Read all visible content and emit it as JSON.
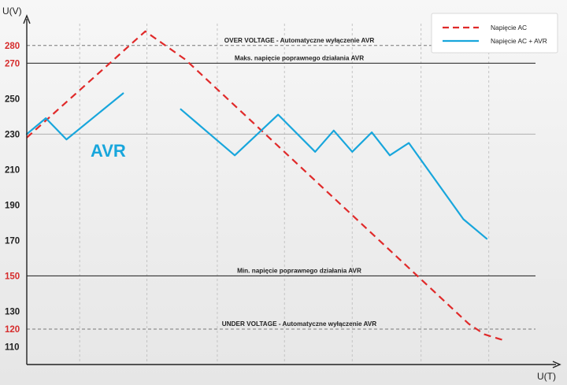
{
  "chart_data": {
    "type": "line",
    "ylabel": "U(V)",
    "xlabel": "U(T)",
    "ylim": [
      100,
      295
    ],
    "xlim": [
      0,
      100
    ],
    "yticks": [
      {
        "value": 280,
        "label": "280",
        "color": "#d62c2c"
      },
      {
        "value": 270,
        "label": "270",
        "color": "#d62c2c"
      },
      {
        "value": 250,
        "label": "250",
        "color": "#222222"
      },
      {
        "value": 230,
        "label": "230",
        "color": "#222222"
      },
      {
        "value": 210,
        "label": "210",
        "color": "#222222"
      },
      {
        "value": 190,
        "label": "190",
        "color": "#222222"
      },
      {
        "value": 170,
        "label": "170",
        "color": "#222222"
      },
      {
        "value": 150,
        "label": "150",
        "color": "#d62c2c"
      },
      {
        "value": 130,
        "label": "130",
        "color": "#222222"
      },
      {
        "value": 120,
        "label": "120",
        "color": "#d62c2c"
      },
      {
        "value": 110,
        "label": "110",
        "color": "#222222"
      }
    ],
    "vgrid_x": [
      10,
      22.7,
      36,
      48.7,
      61.5,
      74.5,
      87.3
    ],
    "reference_lines": [
      {
        "y": 280,
        "style": "dashed",
        "label": "OVER VOLTAGE - Automatyczne wyłączenie AVR"
      },
      {
        "y": 270,
        "style": "solid",
        "label": "Maks. napięcie poprawnego działania AVR"
      },
      {
        "y": 230,
        "style": "solid",
        "label": ""
      },
      {
        "y": 150,
        "style": "solid",
        "label": "Min. napięcie poprawnego działania AVR"
      },
      {
        "y": 120,
        "style": "dashed",
        "label": "UNDER VOLTAGE - Automatyczne wyłączenie AVR"
      }
    ],
    "series": [
      {
        "name": "Napięcie AC",
        "style": "dashed",
        "color": "#e02a2a",
        "segments": [
          [
            [
              0,
              228
            ],
            [
              22.4,
              288
            ],
            [
              30,
              272
            ],
            [
              83.5,
              123
            ],
            [
              86.5,
              117
            ],
            [
              89.8,
              114
            ]
          ]
        ]
      },
      {
        "name": "Napięcie AC  + AVR",
        "style": "solid",
        "color": "#18a6dc",
        "segments": [
          [
            [
              0,
              230
            ],
            [
              3.6,
              239
            ],
            [
              7.5,
              227
            ],
            [
              18.2,
              253
            ]
          ],
          [
            [
              29.1,
              244
            ],
            [
              39.3,
              218
            ],
            [
              47.5,
              241
            ],
            [
              54.5,
              220
            ],
            [
              58,
              232
            ],
            [
              61.5,
              220
            ],
            [
              65.2,
              231
            ],
            [
              68.6,
              218
            ],
            [
              72.2,
              225
            ],
            [
              82.5,
              182
            ],
            [
              86.9,
              171
            ]
          ]
        ]
      }
    ],
    "annotations": [
      {
        "text": "AVR",
        "color": "#18a6dc"
      }
    ],
    "legend_position": "top-right"
  }
}
